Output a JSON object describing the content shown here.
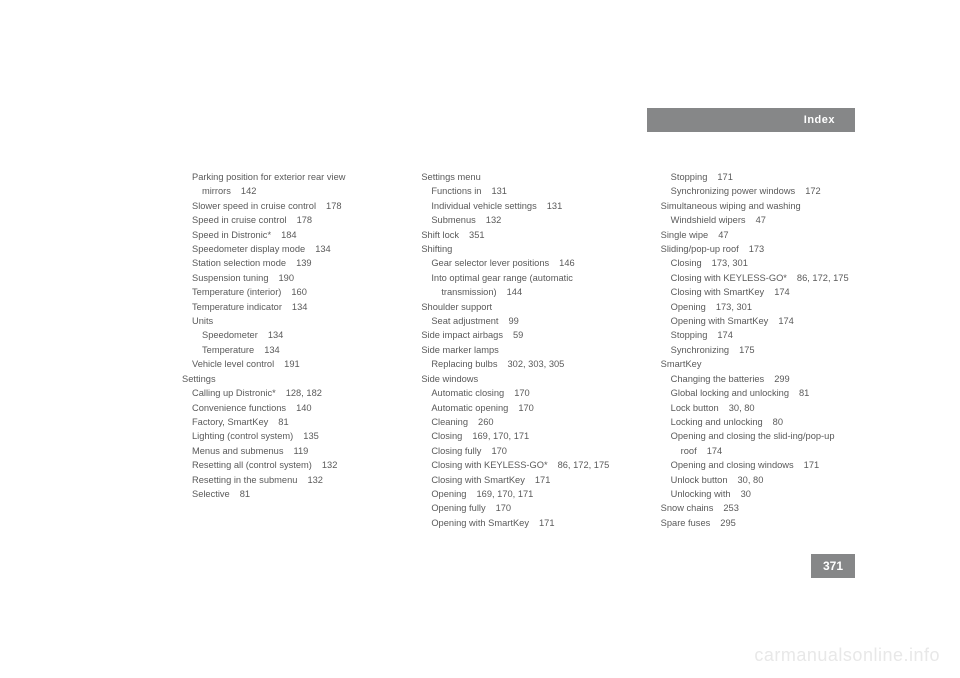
{
  "header": {
    "title": "Index"
  },
  "pageNumber": "371",
  "watermark": "carmanualsonline.info",
  "columns": [
    [
      {
        "t": "Parking position for exterior rear view mirrors",
        "p": "142",
        "cls": "i1w"
      },
      {
        "t": "Slower speed in cruise control",
        "p": "178",
        "cls": "i1"
      },
      {
        "t": "Speed in cruise control",
        "p": "178",
        "cls": "i1"
      },
      {
        "t": "Speed in Distronic*",
        "p": "184",
        "cls": "i1"
      },
      {
        "t": "Speedometer display mode",
        "p": "134",
        "cls": "i1"
      },
      {
        "t": "Station selection mode",
        "p": "139",
        "cls": "i1"
      },
      {
        "t": "Suspension tuning",
        "p": "190",
        "cls": "i1"
      },
      {
        "t": "Temperature (interior)",
        "p": "160",
        "cls": "i1"
      },
      {
        "t": "Temperature indicator",
        "p": "134",
        "cls": "i1"
      },
      {
        "t": "Units",
        "p": "",
        "cls": "i1"
      },
      {
        "t": "Speedometer",
        "p": "134",
        "cls": "i2"
      },
      {
        "t": "Temperature",
        "p": "134",
        "cls": "i2"
      },
      {
        "t": "Vehicle level control",
        "p": "191",
        "cls": "i1"
      },
      {
        "t": "Settings",
        "p": "",
        "cls": "i0"
      },
      {
        "t": "Calling up Distronic*",
        "p": "128, 182",
        "cls": "i1"
      },
      {
        "t": "Convenience functions",
        "p": "140",
        "cls": "i1"
      },
      {
        "t": "Factory, SmartKey",
        "p": "81",
        "cls": "i1"
      },
      {
        "t": "Lighting (control system)",
        "p": "135",
        "cls": "i1"
      },
      {
        "t": "Menus and submenus",
        "p": "119",
        "cls": "i1"
      },
      {
        "t": "Resetting all (control system)",
        "p": "132",
        "cls": "i1"
      },
      {
        "t": "Resetting in the submenu",
        "p": "132",
        "cls": "i1"
      },
      {
        "t": "Selective",
        "p": "81",
        "cls": "i1"
      }
    ],
    [
      {
        "t": "Settings menu",
        "p": "",
        "cls": "i0"
      },
      {
        "t": "Functions in",
        "p": "131",
        "cls": "i1"
      },
      {
        "t": "Individual vehicle settings",
        "p": "131",
        "cls": "i1"
      },
      {
        "t": "Submenus",
        "p": "132",
        "cls": "i1"
      },
      {
        "t": "Shift lock",
        "p": "351",
        "cls": "i0"
      },
      {
        "t": "Shifting",
        "p": "",
        "cls": "i0"
      },
      {
        "t": "Gear selector lever positions",
        "p": "146",
        "cls": "i1"
      },
      {
        "t": "Into optimal gear range (automatic transmission)",
        "p": "144",
        "cls": "i1w"
      },
      {
        "t": "Shoulder support",
        "p": "",
        "cls": "i0"
      },
      {
        "t": "Seat adjustment",
        "p": "99",
        "cls": "i1"
      },
      {
        "t": "Side impact airbags",
        "p": "59",
        "cls": "i0"
      },
      {
        "t": "Side marker lamps",
        "p": "",
        "cls": "i0"
      },
      {
        "t": "Replacing bulbs",
        "p": "302, 303, 305",
        "cls": "i1"
      },
      {
        "t": "Side windows",
        "p": "",
        "cls": "i0"
      },
      {
        "t": "Automatic closing",
        "p": "170",
        "cls": "i1"
      },
      {
        "t": "Automatic opening",
        "p": "170",
        "cls": "i1"
      },
      {
        "t": "Cleaning",
        "p": "260",
        "cls": "i1"
      },
      {
        "t": "Closing",
        "p": "169, 170, 171",
        "cls": "i1"
      },
      {
        "t": "Closing fully",
        "p": "170",
        "cls": "i1"
      },
      {
        "t": "Closing with KEYLESS-GO*",
        "p": "86, 172, 175",
        "cls": "i1w"
      },
      {
        "t": "Closing with SmartKey",
        "p": "171",
        "cls": "i1"
      },
      {
        "t": "Opening",
        "p": "169, 170, 171",
        "cls": "i1"
      },
      {
        "t": "Opening fully",
        "p": "170",
        "cls": "i1"
      },
      {
        "t": "Opening with SmartKey",
        "p": "171",
        "cls": "i1"
      }
    ],
    [
      {
        "t": "Stopping",
        "p": "171",
        "cls": "i1"
      },
      {
        "t": "Synchronizing power windows",
        "p": "172",
        "cls": "i1"
      },
      {
        "t": "Simultaneous wiping and washing",
        "p": "",
        "cls": "i0"
      },
      {
        "t": "Windshield wipers",
        "p": "47",
        "cls": "i1"
      },
      {
        "t": "Single wipe",
        "p": "47",
        "cls": "i0"
      },
      {
        "t": "Sliding/pop-up roof",
        "p": "173",
        "cls": "i0"
      },
      {
        "t": "Closing",
        "p": "173, 301",
        "cls": "i1"
      },
      {
        "t": "Closing with KEYLESS-GO*",
        "p": "86, 172, 175",
        "cls": "i1w"
      },
      {
        "t": "Closing with SmartKey",
        "p": "174",
        "cls": "i1"
      },
      {
        "t": "Opening",
        "p": "173, 301",
        "cls": "i1"
      },
      {
        "t": "Opening with SmartKey",
        "p": "174",
        "cls": "i1"
      },
      {
        "t": "Stopping",
        "p": "174",
        "cls": "i1"
      },
      {
        "t": "Synchronizing",
        "p": "175",
        "cls": "i1"
      },
      {
        "t": "SmartKey",
        "p": "",
        "cls": "i0"
      },
      {
        "t": "Changing the batteries",
        "p": "299",
        "cls": "i1"
      },
      {
        "t": "Global locking and unlocking",
        "p": "81",
        "cls": "i1"
      },
      {
        "t": "Lock button",
        "p": "30, 80",
        "cls": "i1"
      },
      {
        "t": "Locking and unlocking",
        "p": "80",
        "cls": "i1"
      },
      {
        "t": "Opening and closing the slid-ing/pop-up roof",
        "p": "174",
        "cls": "i1w"
      },
      {
        "t": "Opening and closing windows",
        "p": "171",
        "cls": "i1"
      },
      {
        "t": "Unlock button",
        "p": "30, 80",
        "cls": "i1"
      },
      {
        "t": "Unlocking with",
        "p": "30",
        "cls": "i1"
      },
      {
        "t": "Snow chains",
        "p": "253",
        "cls": "i0"
      },
      {
        "t": "Spare fuses",
        "p": "295",
        "cls": "i0"
      }
    ]
  ]
}
